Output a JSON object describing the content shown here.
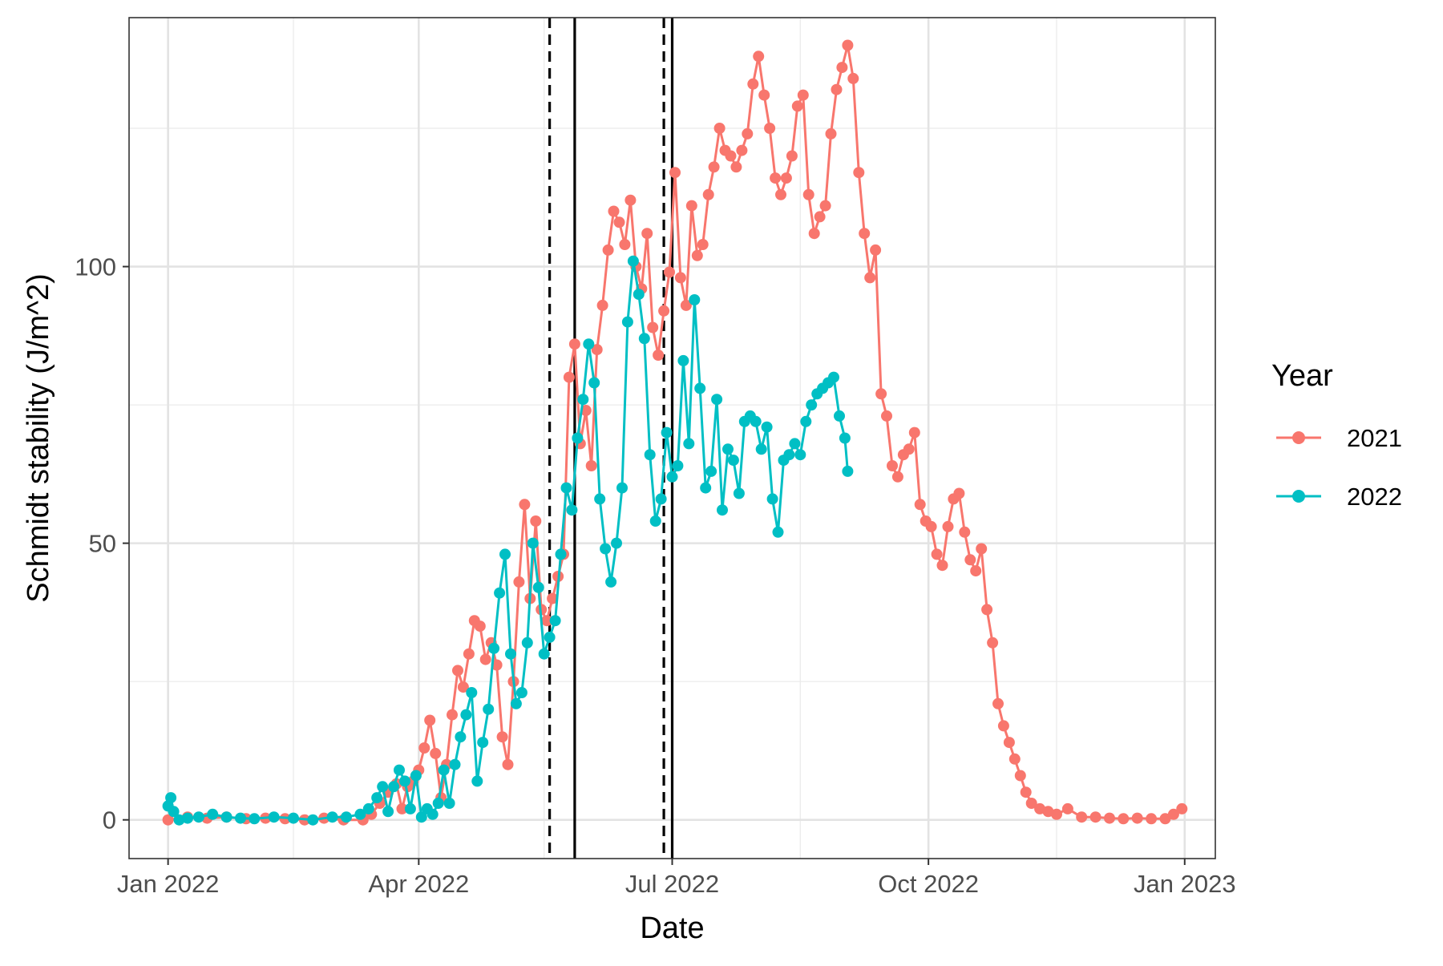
{
  "chart_data": {
    "type": "line",
    "xlabel": "Date",
    "ylabel": "Schmidt stability (J/m^2)",
    "xlim": [
      "2021-12-18",
      "2023-01-12"
    ],
    "ylim": [
      -7,
      145
    ],
    "x_ticks": [
      {
        "date": "2022-01-01",
        "label": "Jan 2022"
      },
      {
        "date": "2022-04-01",
        "label": "Apr 2022"
      },
      {
        "date": "2022-07-01",
        "label": "Jul 2022"
      },
      {
        "date": "2022-10-01",
        "label": "Oct 2022"
      },
      {
        "date": "2023-01-01",
        "label": "Jan 2023"
      }
    ],
    "x_minor_ticks": [
      "2022-02-15",
      "2022-05-16",
      "2022-08-16",
      "2022-11-16"
    ],
    "y_ticks": [
      0,
      50,
      100
    ],
    "y_minor_ticks": [
      25,
      75,
      125
    ],
    "grid": true,
    "legend": {
      "title": "Year",
      "position": "right"
    },
    "vlines": [
      {
        "date": "2022-05-18",
        "style": "dashed"
      },
      {
        "date": "2022-05-27",
        "style": "solid"
      },
      {
        "date": "2022-06-28",
        "style": "dashed"
      },
      {
        "date": "2022-07-01",
        "style": "solid"
      }
    ],
    "series": [
      {
        "name": "2021",
        "color": "#F8766D",
        "points": [
          [
            "2022-01-01",
            0
          ],
          [
            "2022-01-08",
            0.5
          ],
          [
            "2022-01-15",
            0.3
          ],
          [
            "2022-01-22",
            0.5
          ],
          [
            "2022-01-29",
            0.2
          ],
          [
            "2022-02-05",
            0.3
          ],
          [
            "2022-02-12",
            0.2
          ],
          [
            "2022-02-19",
            0
          ],
          [
            "2022-02-26",
            0.3
          ],
          [
            "2022-03-05",
            0
          ],
          [
            "2022-03-12",
            0
          ],
          [
            "2022-03-15",
            1
          ],
          [
            "2022-03-18",
            3
          ],
          [
            "2022-03-21",
            5
          ],
          [
            "2022-03-24",
            6.5
          ],
          [
            "2022-03-26",
            2
          ],
          [
            "2022-03-28",
            6
          ],
          [
            "2022-03-30",
            7
          ],
          [
            "2022-04-01",
            9
          ],
          [
            "2022-04-03",
            13
          ],
          [
            "2022-04-05",
            18
          ],
          [
            "2022-04-07",
            12
          ],
          [
            "2022-04-09",
            4
          ],
          [
            "2022-04-11",
            10
          ],
          [
            "2022-04-13",
            19
          ],
          [
            "2022-04-15",
            27
          ],
          [
            "2022-04-17",
            24
          ],
          [
            "2022-04-19",
            30
          ],
          [
            "2022-04-21",
            36
          ],
          [
            "2022-04-23",
            35
          ],
          [
            "2022-04-25",
            29
          ],
          [
            "2022-04-27",
            32
          ],
          [
            "2022-04-29",
            28
          ],
          [
            "2022-05-01",
            15
          ],
          [
            "2022-05-03",
            10
          ],
          [
            "2022-05-05",
            25
          ],
          [
            "2022-05-07",
            43
          ],
          [
            "2022-05-09",
            57
          ],
          [
            "2022-05-11",
            40
          ],
          [
            "2022-05-13",
            54
          ],
          [
            "2022-05-15",
            38
          ],
          [
            "2022-05-17",
            36
          ],
          [
            "2022-05-19",
            40
          ],
          [
            "2022-05-21",
            44
          ],
          [
            "2022-05-23",
            48
          ],
          [
            "2022-05-25",
            80
          ],
          [
            "2022-05-27",
            86
          ],
          [
            "2022-05-29",
            68
          ],
          [
            "2022-05-31",
            74
          ],
          [
            "2022-06-02",
            64
          ],
          [
            "2022-06-04",
            85
          ],
          [
            "2022-06-06",
            93
          ],
          [
            "2022-06-08",
            103
          ],
          [
            "2022-06-10",
            110
          ],
          [
            "2022-06-12",
            108
          ],
          [
            "2022-06-14",
            104
          ],
          [
            "2022-06-16",
            112
          ],
          [
            "2022-06-18",
            100
          ],
          [
            "2022-06-20",
            96
          ],
          [
            "2022-06-22",
            106
          ],
          [
            "2022-06-24",
            89
          ],
          [
            "2022-06-26",
            84
          ],
          [
            "2022-06-28",
            92
          ],
          [
            "2022-06-30",
            99
          ],
          [
            "2022-07-02",
            117
          ],
          [
            "2022-07-04",
            98
          ],
          [
            "2022-07-06",
            93
          ],
          [
            "2022-07-08",
            111
          ],
          [
            "2022-07-10",
            102
          ],
          [
            "2022-07-12",
            104
          ],
          [
            "2022-07-14",
            113
          ],
          [
            "2022-07-16",
            118
          ],
          [
            "2022-07-18",
            125
          ],
          [
            "2022-07-20",
            121
          ],
          [
            "2022-07-22",
            120
          ],
          [
            "2022-07-24",
            118
          ],
          [
            "2022-07-26",
            121
          ],
          [
            "2022-07-28",
            124
          ],
          [
            "2022-07-30",
            133
          ],
          [
            "2022-08-01",
            138
          ],
          [
            "2022-08-03",
            131
          ],
          [
            "2022-08-05",
            125
          ],
          [
            "2022-08-07",
            116
          ],
          [
            "2022-08-09",
            113
          ],
          [
            "2022-08-11",
            116
          ],
          [
            "2022-08-13",
            120
          ],
          [
            "2022-08-15",
            129
          ],
          [
            "2022-08-17",
            131
          ],
          [
            "2022-08-19",
            113
          ],
          [
            "2022-08-21",
            106
          ],
          [
            "2022-08-23",
            109
          ],
          [
            "2022-08-25",
            111
          ],
          [
            "2022-08-27",
            124
          ],
          [
            "2022-08-29",
            132
          ],
          [
            "2022-08-31",
            136
          ],
          [
            "2022-09-02",
            140
          ],
          [
            "2022-09-04",
            134
          ],
          [
            "2022-09-06",
            117
          ],
          [
            "2022-09-08",
            106
          ],
          [
            "2022-09-10",
            98
          ],
          [
            "2022-09-12",
            103
          ],
          [
            "2022-09-14",
            77
          ],
          [
            "2022-09-16",
            73
          ],
          [
            "2022-09-18",
            64
          ],
          [
            "2022-09-20",
            62
          ],
          [
            "2022-09-22",
            66
          ],
          [
            "2022-09-24",
            67
          ],
          [
            "2022-09-26",
            70
          ],
          [
            "2022-09-28",
            57
          ],
          [
            "2022-09-30",
            54
          ],
          [
            "2022-10-02",
            53
          ],
          [
            "2022-10-04",
            48
          ],
          [
            "2022-10-06",
            46
          ],
          [
            "2022-10-08",
            53
          ],
          [
            "2022-10-10",
            58
          ],
          [
            "2022-10-12",
            59
          ],
          [
            "2022-10-14",
            52
          ],
          [
            "2022-10-16",
            47
          ],
          [
            "2022-10-18",
            45
          ],
          [
            "2022-10-20",
            49
          ],
          [
            "2022-10-22",
            38
          ],
          [
            "2022-10-24",
            32
          ],
          [
            "2022-10-26",
            21
          ],
          [
            "2022-10-28",
            17
          ],
          [
            "2022-10-30",
            14
          ],
          [
            "2022-11-01",
            11
          ],
          [
            "2022-11-03",
            8
          ],
          [
            "2022-11-05",
            5
          ],
          [
            "2022-11-07",
            3
          ],
          [
            "2022-11-10",
            2
          ],
          [
            "2022-11-13",
            1.5
          ],
          [
            "2022-11-16",
            1
          ],
          [
            "2022-11-20",
            2
          ],
          [
            "2022-11-25",
            0.5
          ],
          [
            "2022-11-30",
            0.5
          ],
          [
            "2022-12-05",
            0.3
          ],
          [
            "2022-12-10",
            0.2
          ],
          [
            "2022-12-15",
            0.3
          ],
          [
            "2022-12-20",
            0.2
          ],
          [
            "2022-12-25",
            0.2
          ],
          [
            "2022-12-28",
            1
          ],
          [
            "2022-12-31",
            2
          ]
        ]
      },
      {
        "name": "2022",
        "color": "#00BFC4",
        "points": [
          [
            "2022-01-01",
            2.5
          ],
          [
            "2022-01-02",
            4
          ],
          [
            "2022-01-03",
            1.5
          ],
          [
            "2022-01-05",
            0
          ],
          [
            "2022-01-08",
            0.3
          ],
          [
            "2022-01-12",
            0.5
          ],
          [
            "2022-01-17",
            1
          ],
          [
            "2022-01-22",
            0.5
          ],
          [
            "2022-01-27",
            0.3
          ],
          [
            "2022-02-01",
            0.2
          ],
          [
            "2022-02-08",
            0.5
          ],
          [
            "2022-02-15",
            0.3
          ],
          [
            "2022-02-22",
            0
          ],
          [
            "2022-03-01",
            0.5
          ],
          [
            "2022-03-06",
            0.5
          ],
          [
            "2022-03-11",
            1
          ],
          [
            "2022-03-14",
            2
          ],
          [
            "2022-03-17",
            4
          ],
          [
            "2022-03-19",
            6
          ],
          [
            "2022-03-21",
            1.5
          ],
          [
            "2022-03-23",
            6
          ],
          [
            "2022-03-25",
            9
          ],
          [
            "2022-03-27",
            7
          ],
          [
            "2022-03-29",
            2
          ],
          [
            "2022-03-31",
            8
          ],
          [
            "2022-04-02",
            0.5
          ],
          [
            "2022-04-04",
            2
          ],
          [
            "2022-04-06",
            1
          ],
          [
            "2022-04-08",
            3
          ],
          [
            "2022-04-10",
            9
          ],
          [
            "2022-04-12",
            3
          ],
          [
            "2022-04-14",
            10
          ],
          [
            "2022-04-16",
            15
          ],
          [
            "2022-04-18",
            19
          ],
          [
            "2022-04-20",
            23
          ],
          [
            "2022-04-22",
            7
          ],
          [
            "2022-04-24",
            14
          ],
          [
            "2022-04-26",
            20
          ],
          [
            "2022-04-28",
            31
          ],
          [
            "2022-04-30",
            41
          ],
          [
            "2022-05-02",
            48
          ],
          [
            "2022-05-04",
            30
          ],
          [
            "2022-05-06",
            21
          ],
          [
            "2022-05-08",
            23
          ],
          [
            "2022-05-10",
            32
          ],
          [
            "2022-05-12",
            50
          ],
          [
            "2022-05-14",
            42
          ],
          [
            "2022-05-16",
            30
          ],
          [
            "2022-05-18",
            33
          ],
          [
            "2022-05-20",
            36
          ],
          [
            "2022-05-22",
            48
          ],
          [
            "2022-05-24",
            60
          ],
          [
            "2022-05-26",
            56
          ],
          [
            "2022-05-28",
            69
          ],
          [
            "2022-05-30",
            76
          ],
          [
            "2022-06-01",
            86
          ],
          [
            "2022-06-03",
            79
          ],
          [
            "2022-06-05",
            58
          ],
          [
            "2022-06-07",
            49
          ],
          [
            "2022-06-09",
            43
          ],
          [
            "2022-06-11",
            50
          ],
          [
            "2022-06-13",
            60
          ],
          [
            "2022-06-15",
            90
          ],
          [
            "2022-06-17",
            101
          ],
          [
            "2022-06-19",
            95
          ],
          [
            "2022-06-21",
            87
          ],
          [
            "2022-06-23",
            66
          ],
          [
            "2022-06-25",
            54
          ],
          [
            "2022-06-27",
            58
          ],
          [
            "2022-06-29",
            70
          ],
          [
            "2022-07-01",
            62
          ],
          [
            "2022-07-03",
            64
          ],
          [
            "2022-07-05",
            83
          ],
          [
            "2022-07-07",
            68
          ],
          [
            "2022-07-09",
            94
          ],
          [
            "2022-07-11",
            78
          ],
          [
            "2022-07-13",
            60
          ],
          [
            "2022-07-15",
            63
          ],
          [
            "2022-07-17",
            76
          ],
          [
            "2022-07-19",
            56
          ],
          [
            "2022-07-21",
            67
          ],
          [
            "2022-07-23",
            65
          ],
          [
            "2022-07-25",
            59
          ],
          [
            "2022-07-27",
            72
          ],
          [
            "2022-07-29",
            73
          ],
          [
            "2022-07-31",
            72
          ],
          [
            "2022-08-02",
            67
          ],
          [
            "2022-08-04",
            71
          ],
          [
            "2022-08-06",
            58
          ],
          [
            "2022-08-08",
            52
          ],
          [
            "2022-08-10",
            65
          ],
          [
            "2022-08-12",
            66
          ],
          [
            "2022-08-14",
            68
          ],
          [
            "2022-08-16",
            66
          ],
          [
            "2022-08-18",
            72
          ],
          [
            "2022-08-20",
            75
          ],
          [
            "2022-08-22",
            77
          ],
          [
            "2022-08-24",
            78
          ],
          [
            "2022-08-26",
            79
          ],
          [
            "2022-08-28",
            80
          ],
          [
            "2022-08-30",
            73
          ],
          [
            "2022-09-01",
            69
          ],
          [
            "2022-09-02",
            63
          ]
        ]
      }
    ]
  }
}
